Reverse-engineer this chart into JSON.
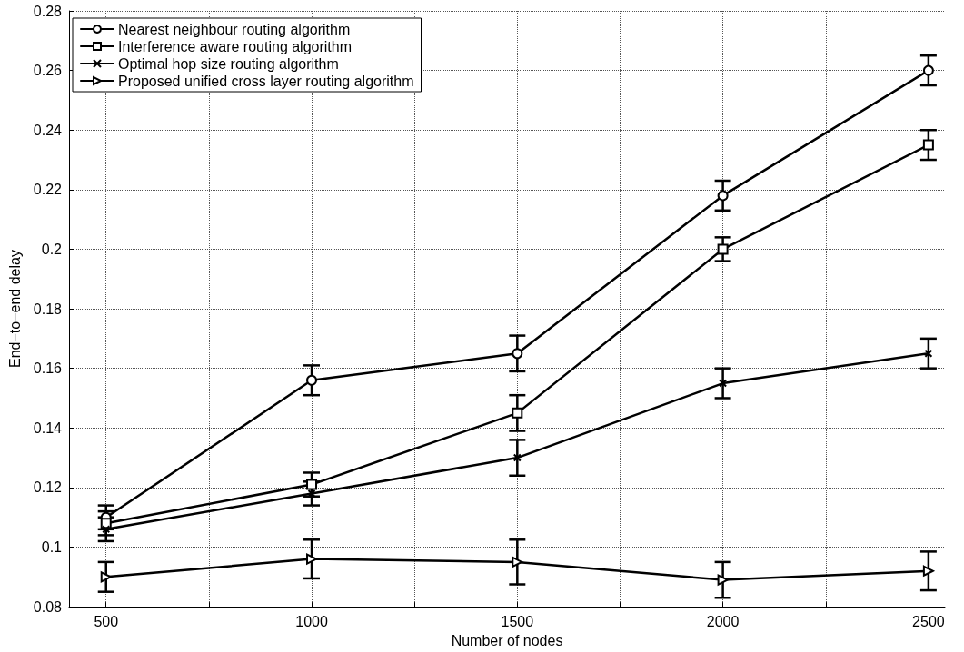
{
  "chart_data": {
    "type": "line",
    "xlabel": "Number of nodes",
    "ylabel": "End−to−end delay",
    "x": [
      500,
      1000,
      1500,
      2000,
      2500
    ],
    "xlim": [
      410,
      2540
    ],
    "xticks": [
      500,
      {
        "value": 750,
        "label": null
      },
      1000,
      {
        "value": 1250,
        "label": null
      },
      1500,
      {
        "value": 1750,
        "label": null
      },
      2000,
      {
        "value": 2250,
        "label": null
      },
      2500
    ],
    "ylim": [
      0.08,
      0.28
    ],
    "yticks": [
      0.08,
      0.1,
      0.12,
      0.14,
      0.16,
      0.18,
      0.2,
      0.22,
      0.24,
      0.26,
      0.28
    ],
    "grid": true,
    "legend": "top left",
    "line_style": "solid",
    "series": [
      {
        "name": "Nearest neighbour routing algorithm",
        "color": "#000000",
        "marker": "circle",
        "values": [
          0.11,
          0.156,
          0.165,
          0.218,
          0.26
        ],
        "errors": [
          0.004,
          0.005,
          0.006,
          0.005,
          0.005
        ]
      },
      {
        "name": "Interference aware routing algorithm",
        "color": "#000000",
        "marker": "square",
        "values": [
          0.108,
          0.121,
          0.145,
          0.2,
          0.235
        ],
        "errors": [
          0.004,
          0.004,
          0.006,
          0.004,
          0.005
        ]
      },
      {
        "name": "Optimal hop size routing algorithm",
        "color": "#000000",
        "marker": "cross",
        "values": [
          0.106,
          0.118,
          0.13,
          0.155,
          0.165
        ],
        "errors": [
          0.004,
          0.004,
          0.006,
          0.005,
          0.005
        ]
      },
      {
        "name": "Proposed unified cross layer routing algorithm",
        "color": "#000000",
        "marker": "triangle",
        "values": [
          0.09,
          0.096,
          0.095,
          0.089,
          0.092
        ],
        "errors": [
          0.005,
          0.0065,
          0.0075,
          0.006,
          0.0065
        ]
      }
    ]
  }
}
